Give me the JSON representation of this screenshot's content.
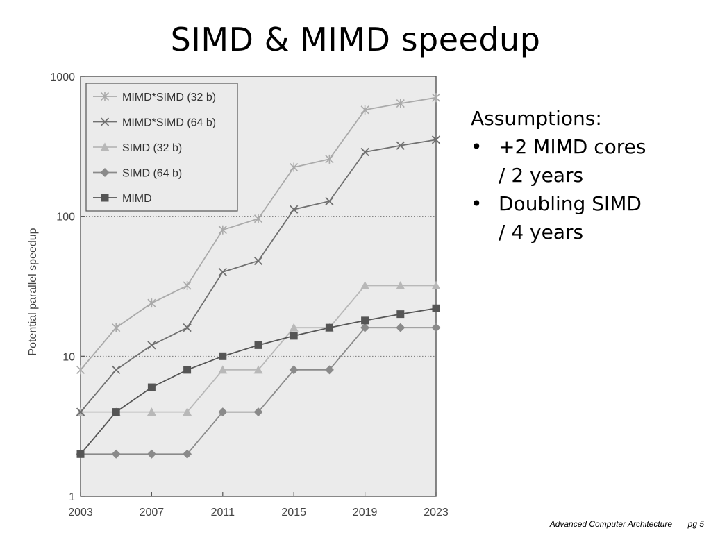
{
  "slide": {
    "title": "SIMD & MIMD speedup",
    "assumptions_heading": "Assumptions:",
    "bullets": [
      {
        "line1": "+2 MIMD cores",
        "line2": "/ 2 years"
      },
      {
        "line1": "Doubling SIMD",
        "line2": "/ 4 years"
      }
    ],
    "bullet_char": "•",
    "footer_course": "Advanced Computer Architecture",
    "footer_page": "pg 5"
  },
  "chart_data": {
    "type": "line",
    "ylabel": "Potential parallel speedup",
    "xlabel": "",
    "yscale": "log",
    "ylim": [
      1,
      1000
    ],
    "xlim": [
      2003,
      2023
    ],
    "xticks": [
      "2003",
      "2007",
      "2011",
      "2015",
      "2019",
      "2023"
    ],
    "yticks": [
      "1",
      "10",
      "100",
      "1000"
    ],
    "grid": "dotted at 10 and 100",
    "legend_position": "top-left",
    "x": [
      2003,
      2005,
      2007,
      2009,
      2011,
      2013,
      2015,
      2017,
      2019,
      2021,
      2023
    ],
    "series": [
      {
        "name": "MIMD*SIMD (32 b)",
        "marker": "asterisk",
        "color": "#aaaaaa",
        "values": [
          8,
          16,
          24,
          32,
          80,
          96,
          224,
          256,
          576,
          640,
          704
        ]
      },
      {
        "name": "MIMD*SIMD (64 b)",
        "marker": "x",
        "color": "#707070",
        "values": [
          4,
          8,
          12,
          16,
          40,
          48,
          112,
          128,
          288,
          320,
          352
        ]
      },
      {
        "name": "SIMD (32 b)",
        "marker": "triangle",
        "color": "#b8b8b8",
        "values": [
          4,
          4,
          4,
          4,
          8,
          8,
          16,
          16,
          32,
          32,
          32
        ]
      },
      {
        "name": "SIMD (64 b)",
        "marker": "diamond",
        "color": "#8a8a8a",
        "values": [
          2,
          2,
          2,
          2,
          4,
          4,
          8,
          8,
          16,
          16,
          16
        ]
      },
      {
        "name": "MIMD",
        "marker": "square",
        "color": "#555555",
        "values": [
          2,
          4,
          6,
          8,
          10,
          12,
          14,
          16,
          18,
          20,
          22
        ]
      }
    ]
  }
}
